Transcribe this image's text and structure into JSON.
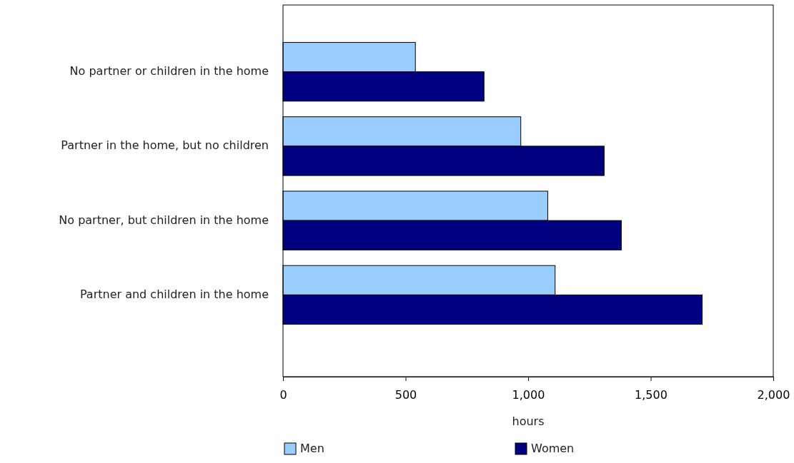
{
  "chart_data": {
    "type": "bar",
    "orientation": "horizontal",
    "xlabel": "hours",
    "categories": [
      "No partner or children in the home",
      "Partner in the home, but no children",
      "No partner, but children in the home",
      "Partner and children in the home"
    ],
    "series": [
      {
        "name": "Men",
        "color": "#99ccff",
        "values": [
          540,
          970,
          1080,
          1110
        ]
      },
      {
        "name": "Women",
        "color": "#000080",
        "values": [
          820,
          1310,
          1380,
          1710
        ]
      }
    ],
    "xlim": [
      0,
      2000
    ],
    "xticks": [
      0,
      500,
      {
        "value": 1000,
        "label": "1,000"
      },
      {
        "value": 1500,
        "label": "1,500"
      },
      {
        "value": 2000,
        "label": "2,000"
      }
    ],
    "legend": "bottom",
    "grid": false
  }
}
